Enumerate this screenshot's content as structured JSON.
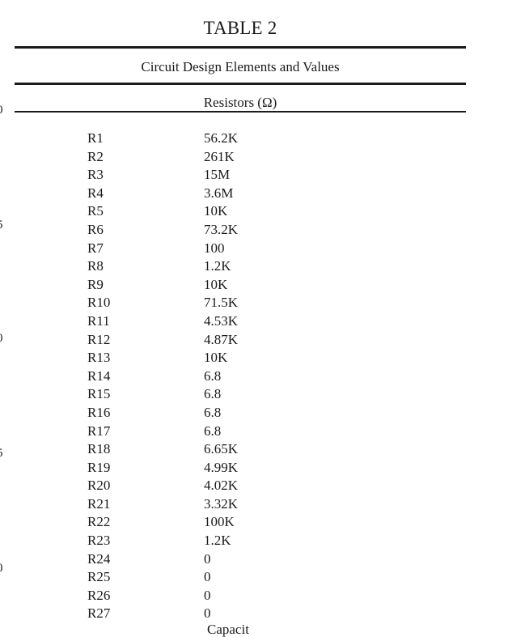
{
  "table": {
    "title": "TABLE 2",
    "subtitle": "Circuit Design Elements and Values",
    "column_header": "Resistors (Ω)",
    "rows": [
      {
        "name": "R1",
        "value": "56.2K"
      },
      {
        "name": "R2",
        "value": "261K"
      },
      {
        "name": "R3",
        "value": "15M"
      },
      {
        "name": "R4",
        "value": "3.6M"
      },
      {
        "name": "R5",
        "value": "10K"
      },
      {
        "name": "R6",
        "value": "73.2K"
      },
      {
        "name": "R7",
        "value": "100"
      },
      {
        "name": "R8",
        "value": "1.2K"
      },
      {
        "name": "R9",
        "value": "10K"
      },
      {
        "name": "R10",
        "value": "71.5K"
      },
      {
        "name": "R11",
        "value": "4.53K"
      },
      {
        "name": "R12",
        "value": "4.87K"
      },
      {
        "name": "R13",
        "value": "10K"
      },
      {
        "name": "R14",
        "value": "6.8"
      },
      {
        "name": "R15",
        "value": "6.8"
      },
      {
        "name": "R16",
        "value": "6.8"
      },
      {
        "name": "R17",
        "value": "6.8"
      },
      {
        "name": "R18",
        "value": "6.65K"
      },
      {
        "name": "R19",
        "value": "4.99K"
      },
      {
        "name": "R20",
        "value": "4.02K"
      },
      {
        "name": "R21",
        "value": "3.32K"
      },
      {
        "name": "R22",
        "value": "100K"
      },
      {
        "name": "R23",
        "value": "1.2K"
      },
      {
        "name": "R24",
        "value": "0"
      },
      {
        "name": "R25",
        "value": "0"
      },
      {
        "name": "R26",
        "value": "0"
      },
      {
        "name": "R27",
        "value": "0"
      }
    ],
    "next_section_partial": "Capacit"
  },
  "margin_line_numbers": [
    "0",
    "5",
    "0",
    "5",
    "0"
  ]
}
